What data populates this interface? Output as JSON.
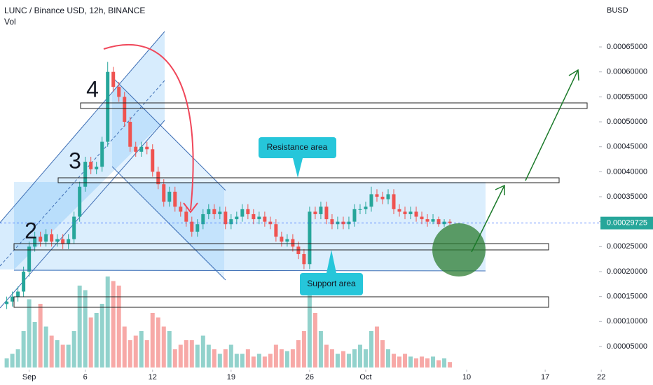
{
  "chart_data": {
    "type": "candlestick",
    "title": "LUNC / Binance USD, 12h, BINANCE",
    "volume_label": "Vol",
    "currency": "BUSD",
    "up_color": "#26a69a",
    "down_color": "#ef5350",
    "wave_labels": [
      "4",
      "3",
      "2"
    ],
    "callouts": [
      "Resistance area",
      "Support area"
    ],
    "x": [
      -2,
      -1.5,
      -1,
      -0.5,
      0,
      0.5,
      1,
      1.5,
      2,
      2.5,
      3,
      3.5,
      4,
      4.5,
      5,
      5.5,
      6,
      6.5,
      7,
      7.5,
      8,
      8.5,
      9,
      9.5,
      10,
      10.5,
      11,
      11.5,
      12,
      12.5,
      13,
      13.5,
      14,
      14.5,
      15,
      15.5,
      16,
      16.5,
      17,
      17.5,
      18,
      18.5,
      19,
      19.5,
      20,
      20.5,
      21,
      21.5,
      22,
      22.5,
      23,
      23.5,
      24,
      24.5,
      25,
      25.5,
      26,
      26.5,
      27,
      27.5,
      28,
      28.5,
      29,
      29.5,
      30,
      30.5,
      31,
      31.5,
      32,
      32.5,
      33,
      33.5,
      34,
      34.5,
      35,
      35.5,
      36,
      36.5,
      37,
      37.5
    ],
    "open": [
      0.000135,
      0.00014,
      0.00015,
      0.00016,
      0.0002,
      0.00025,
      0.00027,
      0.00026,
      0.000275,
      0.00026,
      0.000265,
      0.000255,
      0.000265,
      0.00031,
      0.00037,
      0.00042,
      0.000405,
      0.00041,
      0.00046,
      0.0006,
      0.00057,
      0.00055,
      0.0005,
      0.00045,
      0.00044,
      0.00045,
      0.000445,
      0.0004,
      0.000375,
      0.00034,
      0.00036,
      0.00033,
      0.00032,
      0.0003,
      0.00028,
      0.000295,
      0.000315,
      0.000325,
      0.000315,
      0.00032,
      0.000295,
      0.000305,
      0.00031,
      0.000325,
      0.000315,
      0.000305,
      0.00031,
      0.0003,
      0.000295,
      0.00027,
      0.00026,
      0.000265,
      0.00025,
      0.000235,
      0.000215,
      0.00032,
      0.000315,
      0.00033,
      0.000305,
      0.000295,
      0.0003,
      0.000295,
      0.0003,
      0.000325,
      0.000325,
      0.00033,
      0.000355,
      0.00035,
      0.000345,
      0.000355,
      0.000325,
      0.00032,
      0.000315,
      0.00032,
      0.00031,
      0.000305,
      0.0003,
      0.000305,
      0.000295,
      0.0003
    ],
    "close": [
      0.00014,
      0.00015,
      0.00016,
      0.0002,
      0.00025,
      0.00027,
      0.00026,
      0.000275,
      0.00026,
      0.000265,
      0.000255,
      0.000265,
      0.00031,
      0.00037,
      0.00042,
      0.000405,
      0.00041,
      0.00046,
      0.0006,
      0.00057,
      0.00055,
      0.0005,
      0.00045,
      0.00044,
      0.00045,
      0.000445,
      0.0004,
      0.000375,
      0.00034,
      0.00036,
      0.00033,
      0.00032,
      0.0003,
      0.00028,
      0.000295,
      0.000315,
      0.000325,
      0.000315,
      0.00032,
      0.000295,
      0.000305,
      0.00031,
      0.000325,
      0.000315,
      0.000305,
      0.00031,
      0.0003,
      0.000295,
      0.00027,
      0.00026,
      0.000265,
      0.00025,
      0.000235,
      0.000215,
      0.00032,
      0.000315,
      0.00033,
      0.000305,
      0.000295,
      0.0003,
      0.000295,
      0.0003,
      0.000325,
      0.000325,
      0.00033,
      0.000355,
      0.00035,
      0.000345,
      0.000355,
      0.000325,
      0.00032,
      0.000315,
      0.00032,
      0.00031,
      0.000305,
      0.0003,
      0.000305,
      0.000295,
      0.0003,
      0.00029725
    ],
    "high": [
      0.00015,
      0.00016,
      0.00017,
      0.00021,
      0.00026,
      0.00028,
      0.00028,
      0.000285,
      0.000285,
      0.000275,
      0.000275,
      0.000275,
      0.00032,
      0.00038,
      0.00043,
      0.00043,
      0.00042,
      0.00047,
      0.00062,
      0.00061,
      0.00058,
      0.00056,
      0.00051,
      0.00046,
      0.00046,
      0.00046,
      0.000455,
      0.00041,
      0.000385,
      0.00037,
      0.00037,
      0.00034,
      0.00033,
      0.00031,
      0.000305,
      0.000325,
      0.000335,
      0.000335,
      0.00033,
      0.00033,
      0.000315,
      0.00032,
      0.000335,
      0.000335,
      0.000325,
      0.00032,
      0.00032,
      0.00031,
      0.000305,
      0.00028,
      0.000275,
      0.000275,
      0.00026,
      0.000245,
      0.00033,
      0.00033,
      0.00034,
      0.00034,
      0.000315,
      0.00031,
      0.00031,
      0.00031,
      0.000335,
      0.000335,
      0.00034,
      0.00037,
      0.000365,
      0.00036,
      0.000365,
      0.000365,
      0.000335,
      0.00033,
      0.00033,
      0.00033,
      0.00032,
      0.000315,
      0.000315,
      0.00031,
      0.000305,
      0.000305
    ],
    "low": [
      0.000125,
      0.00013,
      0.00014,
      0.00015,
      0.00019,
      0.00024,
      0.00025,
      0.00025,
      0.00025,
      0.00025,
      0.000245,
      0.000245,
      0.000255,
      0.0003,
      0.00036,
      0.000395,
      0.000395,
      0.0004,
      0.00045,
      0.00056,
      0.00054,
      0.00049,
      0.00044,
      0.00043,
      0.00043,
      0.000435,
      0.00039,
      0.000365,
      0.00033,
      0.00033,
      0.00032,
      0.00031,
      0.00029,
      0.00027,
      0.00027,
      0.000285,
      0.000305,
      0.000305,
      0.000305,
      0.000285,
      0.000285,
      0.000295,
      0.0003,
      0.000305,
      0.000295,
      0.000295,
      0.00029,
      0.000285,
      0.00026,
      0.00025,
      0.00025,
      0.00024,
      0.000225,
      0.000205,
      0.000205,
      0.000305,
      0.000305,
      0.000295,
      0.000285,
      0.000285,
      0.000285,
      0.000285,
      0.00029,
      0.000315,
      0.000315,
      0.00032,
      0.00034,
      0.000335,
      0.000335,
      0.000315,
      0.00031,
      0.000305,
      0.000305,
      0.0003,
      0.000295,
      0.00029,
      0.000295,
      0.00029,
      0.00029,
      0.000293
    ],
    "volume": [
      10,
      15,
      20,
      40,
      75,
      50,
      70,
      45,
      35,
      30,
      25,
      25,
      40,
      90,
      85,
      55,
      60,
      70,
      100,
      95,
      90,
      45,
      30,
      35,
      40,
      30,
      60,
      55,
      45,
      40,
      20,
      25,
      30,
      30,
      25,
      35,
      25,
      20,
      15,
      20,
      25,
      15,
      15,
      20,
      12,
      15,
      12,
      15,
      25,
      20,
      18,
      20,
      30,
      40,
      95,
      60,
      40,
      25,
      20,
      15,
      18,
      15,
      20,
      25,
      20,
      40,
      45,
      30,
      20,
      15,
      12,
      15,
      12,
      10,
      12,
      10,
      12,
      8,
      10,
      6
    ],
    "volume_ylim": [
      0,
      100
    ],
    "last_price": 0.00029725,
    "xlim": [
      -2.6,
      50.8
    ],
    "ylim": [
      7.9e-06,
      0.000744
    ],
    "xticks": [
      {
        "value": 0,
        "label": "Sep"
      },
      {
        "value": 5,
        "label": "6"
      },
      {
        "value": 11,
        "label": "12"
      },
      {
        "value": 18,
        "label": "19"
      },
      {
        "value": 25,
        "label": "26"
      },
      {
        "value": 30,
        "label": "Oct"
      },
      {
        "value": 39,
        "label": "10"
      },
      {
        "value": 46,
        "label": "17"
      },
      {
        "value": 51,
        "label": "22"
      }
    ],
    "yticks": [
      {
        "value": 0.00065,
        "label": "0.00065000"
      },
      {
        "value": 0.0006,
        "label": "0.00060000"
      },
      {
        "value": 0.00055,
        "label": "0.00055000"
      },
      {
        "value": 0.0005,
        "label": "0.00050000"
      },
      {
        "value": 0.00045,
        "label": "0.00045000"
      },
      {
        "value": 0.0004,
        "label": "0.00040000"
      },
      {
        "value": 0.00035,
        "label": "0.00035000"
      },
      {
        "value": 0.0003,
        "label": "0.00030000"
      },
      {
        "value": 0.00025,
        "label": "0.00025000"
      },
      {
        "value": 0.0002,
        "label": "0.00020000"
      },
      {
        "value": 0.00015,
        "label": "0.00015000"
      },
      {
        "value": 0.0001,
        "label": "0.00010000"
      },
      {
        "value": 5e-05,
        "label": "0.00005000"
      }
    ]
  }
}
